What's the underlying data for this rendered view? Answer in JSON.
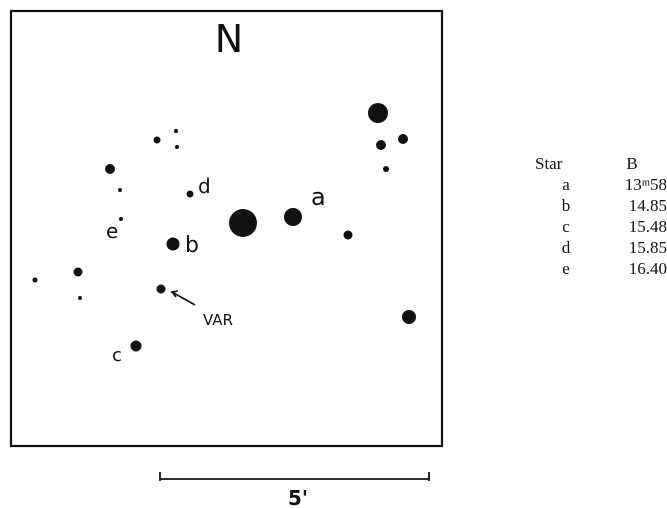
{
  "chart": {
    "north_label": "N",
    "var_label": "VAR",
    "scale_label": "5'",
    "labels": {
      "a": "a",
      "b": "b",
      "c": "c",
      "d": "d",
      "e": "e"
    }
  },
  "table": {
    "headers": [
      "Star",
      "B"
    ],
    "rows": [
      {
        "star": "a",
        "mag": "13ᵐ58"
      },
      {
        "star": "b",
        "mag": "14.85"
      },
      {
        "star": "c",
        "mag": "15.48"
      },
      {
        "star": "d",
        "mag": "15.85"
      },
      {
        "star": "e",
        "mag": "16.40"
      }
    ]
  }
}
